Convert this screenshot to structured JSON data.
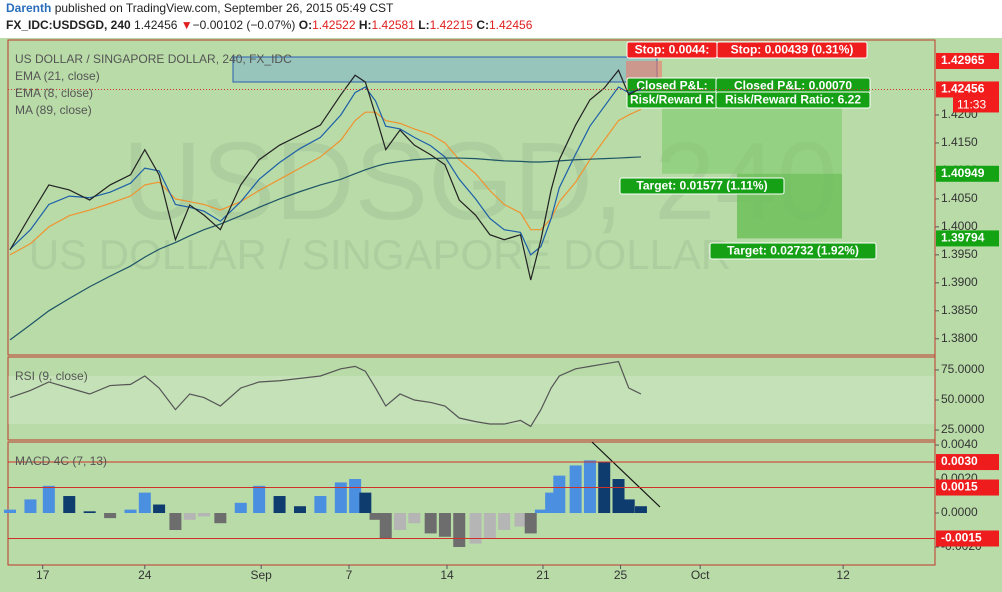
{
  "header": {
    "author": "Darenth",
    "published": "published on TradingView.com, September 26, 2015 05:49 CST",
    "symbol": "FX_IDC:USDSGD, 240",
    "last": "1.42456",
    "arrow": "▼",
    "change": "−0.00102 (−0.07%)",
    "ohlc": [
      {
        "label": "O:",
        "value": "1.42522"
      },
      {
        "label": "H:",
        "value": "1.42581"
      },
      {
        "label": "L:",
        "value": "1.42215"
      },
      {
        "label": "C:",
        "value": "1.42456"
      }
    ]
  },
  "chart_data": [
    {
      "type": "line",
      "title": "US DOLLAR / SINGAPORE DOLLAR, 240, FX_IDC",
      "watermark": [
        "USDSGD, 240",
        "US DOLLAR / SINGAPORE DOLLAR"
      ],
      "x": [
        -1.6,
        -0.6,
        0.3,
        1.3,
        2.3,
        3.3,
        4.3,
        5.0,
        5.7,
        6.5,
        7.2,
        7.9,
        8.7,
        9.7,
        10.6,
        11.6,
        12.6,
        13.6,
        14.6,
        15.3,
        15.8,
        16.3,
        16.8,
        17.5,
        18.2,
        19.0,
        19.7,
        20.4,
        21.2,
        21.9,
        22.6,
        23.4,
        23.9,
        24.4,
        24.9,
        25.3,
        26.1,
        26.8,
        27.5,
        28.2,
        28.7,
        29.3
      ],
      "values": [
        1.3959,
        1.4021,
        1.4075,
        1.4066,
        1.4048,
        1.4075,
        1.4093,
        1.4138,
        1.4093,
        1.3977,
        1.4039,
        1.4021,
        1.3995,
        1.4075,
        1.412,
        1.4146,
        1.4164,
        1.4182,
        1.4236,
        1.4271,
        1.4259,
        1.42,
        1.4138,
        1.4173,
        1.4146,
        1.4129,
        1.4111,
        1.4048,
        1.4021,
        1.3986,
        1.3977,
        1.3986,
        1.3905,
        1.3977,
        1.4066,
        1.412,
        1.4182,
        1.4227,
        1.4248,
        1.428,
        1.4236,
        1.4248
      ],
      "color": "#222222",
      "series": [
        {
          "name": "EMA (21, close)",
          "color": "#f0932f",
          "values": [
            1.395,
            1.397,
            1.4,
            1.402,
            1.403,
            1.4042,
            1.4055,
            1.4075,
            1.408,
            1.405,
            1.4045,
            1.404,
            1.403,
            1.4045,
            1.4065,
            1.4085,
            1.4105,
            1.4125,
            1.4155,
            1.419,
            1.4205,
            1.4205,
            1.419,
            1.4185,
            1.4175,
            1.4165,
            1.415,
            1.412,
            1.4095,
            1.4065,
            1.404,
            1.4025,
            1.3995,
            1.3995,
            1.4015,
            1.4045,
            1.408,
            1.412,
            1.4155,
            1.419,
            1.42,
            1.421
          ]
        },
        {
          "name": "EMA (8, close)",
          "color": "#1d5fa8",
          "values": [
            1.396,
            1.3995,
            1.404,
            1.4055,
            1.4052,
            1.4062,
            1.4078,
            1.4105,
            1.41,
            1.404,
            1.4035,
            1.4028,
            1.401,
            1.4045,
            1.4085,
            1.4115,
            1.414,
            1.416,
            1.42,
            1.424,
            1.425,
            1.4225,
            1.418,
            1.4175,
            1.416,
            1.4145,
            1.4125,
            1.4085,
            1.405,
            1.4015,
            1.3995,
            1.399,
            1.395,
            1.3965,
            1.4015,
            1.407,
            1.413,
            1.418,
            1.4215,
            1.425,
            1.424,
            1.4245
          ]
        },
        {
          "name": "MA (89, close)",
          "color": "#1e5466",
          "values": [
            1.3798,
            1.3825,
            1.385,
            1.3872,
            1.3893,
            1.3912,
            1.393,
            1.3946,
            1.396,
            1.3972,
            1.3984,
            1.3995,
            1.4005,
            1.402,
            1.4035,
            1.405,
            1.4063,
            1.4075,
            1.4085,
            1.4095,
            1.4102,
            1.4108,
            1.4113,
            1.4117,
            1.412,
            1.4122,
            1.4123,
            1.4123,
            1.4122,
            1.412,
            1.4118,
            1.4117,
            1.4116,
            1.4116,
            1.4117,
            1.4118,
            1.412,
            1.4121,
            1.4122,
            1.4123,
            1.4124,
            1.4125
          ]
        }
      ],
      "xlim": [
        -1.7,
        43.7
      ],
      "ylim": [
        1.3771,
        1.4334
      ],
      "yticks": [
        {
          "value": 1.38,
          "label": "1.3800"
        },
        {
          "value": 1.385,
          "label": "1.3850"
        },
        {
          "value": 1.39,
          "label": "1.3900"
        },
        {
          "value": 1.395,
          "label": "1.3950"
        },
        {
          "value": 1.4,
          "label": "1.4000"
        },
        {
          "value": 1.405,
          "label": "1.4050"
        },
        {
          "value": 1.41,
          "label": "1.4100"
        },
        {
          "value": 1.415,
          "label": "1.4150"
        },
        {
          "value": 1.42,
          "label": "1.4200"
        }
      ],
      "markers": [
        {
          "value": 1.42965,
          "color": "#f21c1c"
        },
        {
          "value": 1.42456,
          "color": "#f21c1c",
          "countdown": "11:33"
        },
        {
          "value": 1.40949,
          "color": "#13a313"
        },
        {
          "value": 1.39794,
          "color": "#13a313"
        }
      ],
      "position": {
        "stop": [
          "Stop: 0.0044:",
          "Stop: 0.00439 (0.31%)"
        ],
        "pnl": [
          "Closed P&L:",
          "Closed P&L: 0.00070"
        ],
        "rr": [
          "Risk/Reward R",
          "Risk/Reward Ratio: 6.22"
        ],
        "targets": [
          "Target: 0.01577 (1.11%)",
          "Target: 0.02732 (1.92%)"
        ]
      }
    },
    {
      "type": "line",
      "title": "RSI (9, close)",
      "x": [
        -1.6,
        -0.6,
        0.3,
        1.3,
        2.3,
        3.3,
        4.3,
        5.0,
        5.7,
        6.5,
        7.2,
        7.9,
        8.7,
        9.7,
        10.6,
        11.6,
        12.6,
        13.6,
        14.6,
        15.3,
        15.8,
        16.3,
        16.8,
        17.5,
        18.2,
        19.0,
        19.7,
        20.4,
        21.2,
        21.9,
        22.6,
        23.4,
        23.9,
        24.4,
        24.9,
        25.3,
        26.1,
        26.8,
        27.5,
        28.2,
        28.7,
        29.3
      ],
      "values": [
        52,
        58,
        65,
        60,
        55,
        62,
        63,
        70,
        60,
        42,
        55,
        52,
        45,
        60,
        65,
        66,
        68,
        70,
        76,
        78,
        74,
        60,
        45,
        55,
        50,
        48,
        45,
        35,
        32,
        30,
        30,
        33,
        28,
        42,
        60,
        70,
        76,
        78,
        80,
        82,
        60,
        55
      ],
      "color": "#555555",
      "band": [
        30,
        70
      ],
      "xlim": [
        -1.7,
        43.7
      ],
      "ylim": [
        16.7,
        85.8
      ],
      "yticks": [
        {
          "value": 25,
          "label": "25.0000"
        },
        {
          "value": 50,
          "label": "50.0000"
        },
        {
          "value": 75,
          "label": "75.0000"
        }
      ]
    },
    {
      "type": "bar",
      "title": "MACD 4C (7, 13)",
      "x": [
        -1.6,
        -0.6,
        0.3,
        1.3,
        2.3,
        3.3,
        4.3,
        5.0,
        5.7,
        6.5,
        7.2,
        7.9,
        8.7,
        9.7,
        10.6,
        11.6,
        12.6,
        13.6,
        14.6,
        15.3,
        15.8,
        16.3,
        16.8,
        17.5,
        18.2,
        19.0,
        19.7,
        20.4,
        21.2,
        21.9,
        22.6,
        23.4,
        23.9,
        24.4,
        24.9,
        25.3,
        26.1,
        26.8,
        27.5,
        28.2,
        28.7,
        29.3
      ],
      "values": [
        0.0002,
        0.0008,
        0.0016,
        0.001,
        0.0001,
        -0.0003,
        0.0002,
        0.0012,
        0.0005,
        -0.001,
        -0.0004,
        -0.0002,
        -0.0006,
        0.0006,
        0.0016,
        0.001,
        0.0004,
        0.001,
        0.0018,
        0.002,
        0.0012,
        -0.0004,
        -0.0015,
        -0.001,
        -0.0006,
        -0.0012,
        -0.0014,
        -0.002,
        -0.0018,
        -0.0015,
        -0.001,
        -0.0008,
        -0.0012,
        0.0002,
        0.0012,
        0.0022,
        0.0028,
        0.0031,
        0.003,
        0.002,
        0.0008,
        0.0004
      ],
      "colors": {
        "up_rising": "#4a8fe0",
        "up_falling": "#0f3c6e",
        "down_falling": "#6d6d6d",
        "down_rising": "#b5b5b5"
      },
      "xlim": [
        -1.7,
        43.7
      ],
      "ylim": [
        -0.00306,
        0.00418
      ],
      "yticks": [
        {
          "value": -0.002,
          "label": "-0.0020"
        },
        {
          "value": 0,
          "label": "0.0000"
        },
        {
          "value": 0.002,
          "label": "0.0020"
        },
        {
          "value": 0.004,
          "label": "0.0040"
        }
      ],
      "levels": [
        {
          "value": 0.003,
          "label": "0.0030"
        },
        {
          "value": 0.0015,
          "label": "0.0015"
        },
        {
          "value": -0.0015,
          "label": "-0.0015"
        }
      ],
      "xticks": [
        {
          "value": 0,
          "label": "17"
        },
        {
          "value": 5,
          "label": "24"
        },
        {
          "value": 10.7,
          "label": "Sep"
        },
        {
          "value": 15,
          "label": "7"
        },
        {
          "value": 19.8,
          "label": "14"
        },
        {
          "value": 24.5,
          "label": "21"
        },
        {
          "value": 28.3,
          "label": "25"
        },
        {
          "value": 32.2,
          "label": "Oct"
        },
        {
          "value": 39.2,
          "label": "12"
        }
      ]
    }
  ]
}
